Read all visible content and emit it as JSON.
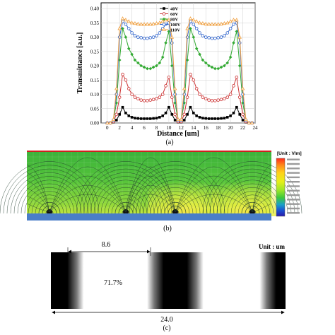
{
  "panels": {
    "a_label": "(a)",
    "b_label": "(b)",
    "c_label": "(c)"
  },
  "chart_data": [
    {
      "type": "line",
      "xlabel": "Distance [um]",
      "ylabel": "Transmittance [a.u.]",
      "xlim": [
        -1,
        24
      ],
      "ylim": [
        0,
        0.42
      ],
      "xticks": [
        "0",
        "2",
        "4",
        "6",
        "8",
        "10",
        "12",
        "14",
        "16",
        "18",
        "20",
        "22",
        "24"
      ],
      "yticks": [
        "0.00",
        "0.05",
        "0.10",
        "0.15",
        "0.20",
        "0.25",
        "0.30",
        "0.35",
        "0.40"
      ],
      "grid": true,
      "legend_position": "top-center",
      "x": [
        0,
        0.5,
        1,
        1.5,
        2,
        2.5,
        3,
        3.5,
        4,
        4.5,
        5,
        5.5,
        6,
        6.5,
        7,
        7.5,
        8,
        8.5,
        9,
        9.5,
        10,
        10.5,
        11,
        11.5,
        12,
        12.5,
        13,
        13.5,
        14,
        14.5,
        15,
        15.5,
        16,
        16.5,
        17,
        17.5,
        18,
        18.5,
        19,
        19.5,
        20,
        20.5,
        21,
        21.5,
        22,
        22.5,
        23,
        23.5
      ],
      "series": [
        {
          "name": "40V",
          "color": "#000000",
          "marker": "square-filled",
          "values": [
            0,
            0,
            0.003,
            0.01,
            0.03,
            0.055,
            0.035,
            0.025,
            0.02,
            0.017,
            0.016,
            0.015,
            0.015,
            0.015,
            0.015,
            0.016,
            0.017,
            0.02,
            0.025,
            0.035,
            0.055,
            0.03,
            0.01,
            0.003,
            0.003,
            0.01,
            0.03,
            0.055,
            0.035,
            0.025,
            0.02,
            0.017,
            0.016,
            0.015,
            0.015,
            0.015,
            0.015,
            0.016,
            0.017,
            0.02,
            0.025,
            0.035,
            0.055,
            0.03,
            0.01,
            0.003,
            0,
            0
          ]
        },
        {
          "name": "60V",
          "color": "#cc3333",
          "marker": "circle-open",
          "values": [
            0,
            0,
            0.005,
            0.03,
            0.09,
            0.17,
            0.15,
            0.12,
            0.1,
            0.09,
            0.085,
            0.08,
            0.078,
            0.078,
            0.08,
            0.082,
            0.085,
            0.09,
            0.1,
            0.13,
            0.16,
            0.09,
            0.03,
            0.005,
            0.005,
            0.03,
            0.09,
            0.17,
            0.15,
            0.12,
            0.1,
            0.09,
            0.085,
            0.08,
            0.078,
            0.078,
            0.08,
            0.082,
            0.085,
            0.09,
            0.1,
            0.13,
            0.16,
            0.09,
            0.03,
            0.005,
            0,
            0
          ]
        },
        {
          "name": "80V",
          "color": "#33aa33",
          "marker": "diamond-filled",
          "values": [
            0,
            0,
            0.01,
            0.07,
            0.22,
            0.33,
            0.3,
            0.26,
            0.24,
            0.22,
            0.21,
            0.2,
            0.195,
            0.19,
            0.19,
            0.195,
            0.2,
            0.21,
            0.23,
            0.28,
            0.32,
            0.2,
            0.07,
            0.01,
            0.01,
            0.07,
            0.22,
            0.33,
            0.3,
            0.26,
            0.24,
            0.22,
            0.21,
            0.2,
            0.195,
            0.19,
            0.19,
            0.195,
            0.2,
            0.21,
            0.23,
            0.28,
            0.32,
            0.2,
            0.07,
            0.01,
            0,
            0
          ]
        },
        {
          "name": "100V",
          "color": "#3366cc",
          "marker": "circle-open",
          "values": [
            0,
            0,
            0.01,
            0.1,
            0.3,
            0.355,
            0.345,
            0.33,
            0.315,
            0.305,
            0.3,
            0.298,
            0.296,
            0.296,
            0.298,
            0.3,
            0.305,
            0.315,
            0.33,
            0.345,
            0.35,
            0.28,
            0.1,
            0.01,
            0.01,
            0.1,
            0.3,
            0.355,
            0.345,
            0.33,
            0.315,
            0.305,
            0.3,
            0.298,
            0.296,
            0.296,
            0.298,
            0.3,
            0.305,
            0.315,
            0.33,
            0.345,
            0.35,
            0.28,
            0.1,
            0.01,
            0,
            0
          ]
        },
        {
          "name": "110V",
          "color": "#f0a040",
          "marker": "triangle-open",
          "values": [
            0,
            0,
            0.012,
            0.12,
            0.33,
            0.365,
            0.36,
            0.355,
            0.35,
            0.348,
            0.346,
            0.345,
            0.345,
            0.345,
            0.345,
            0.346,
            0.348,
            0.35,
            0.355,
            0.36,
            0.36,
            0.3,
            0.12,
            0.012,
            0.012,
            0.12,
            0.33,
            0.365,
            0.36,
            0.355,
            0.35,
            0.348,
            0.346,
            0.345,
            0.345,
            0.345,
            0.345,
            0.346,
            0.348,
            0.35,
            0.355,
            0.36,
            0.36,
            0.3,
            0.12,
            0.012,
            0,
            0
          ]
        }
      ]
    },
    {
      "type": "heatmap",
      "legend_title": "[Unit : V/m]",
      "colorbar_colors": [
        "#ff2a1a",
        "#ff8a1a",
        "#ffd21a",
        "#e6ef1a",
        "#9be628",
        "#3cc83c",
        "#1aa0c8",
        "#1a50d2",
        "#2a1aaa"
      ]
    },
    {
      "type": "table",
      "unit_label": "Unit : um",
      "transmittance_label": "71.7%",
      "width_top": "8.6",
      "width_total": "24.0"
    }
  ]
}
